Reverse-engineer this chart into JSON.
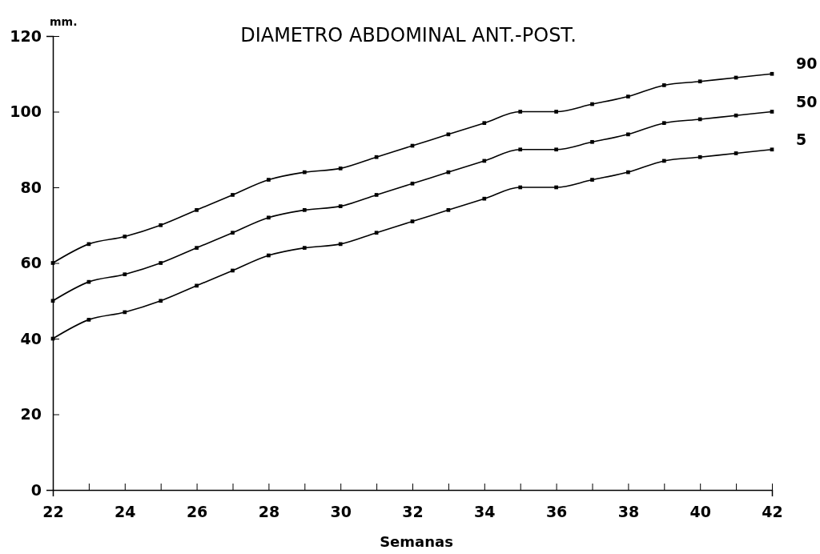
{
  "chart_data": {
    "type": "line",
    "title": "DIAMETRO ABDOMINAL ANT.-POST.",
    "xlabel": "Semanas",
    "ylabel": "mm.",
    "x": [
      22,
      23,
      24,
      25,
      26,
      27,
      28,
      29,
      30,
      31,
      32,
      33,
      34,
      35,
      36,
      37,
      38,
      39,
      40,
      41,
      42
    ],
    "series": [
      {
        "name": "90",
        "color": "#000000",
        "values": [
          60,
          65,
          67,
          70,
          74,
          78,
          82,
          84,
          85,
          88,
          91,
          94,
          97,
          100,
          100,
          102,
          104,
          107,
          108,
          109,
          110
        ]
      },
      {
        "name": "50",
        "color": "#000000",
        "values": [
          50,
          55,
          57,
          60,
          64,
          68,
          72,
          74,
          75,
          78,
          81,
          84,
          87,
          90,
          90,
          92,
          94,
          97,
          98,
          99,
          100
        ]
      },
      {
        "name": "5",
        "color": "#000000",
        "values": [
          40,
          45,
          47,
          50,
          54,
          58,
          62,
          64,
          65,
          68,
          71,
          74,
          77,
          80,
          80,
          82,
          84,
          87,
          88,
          89,
          90
        ]
      }
    ],
    "xlim": [
      22,
      42
    ],
    "ylim": [
      0,
      120
    ],
    "xticks": [
      22,
      {
        "value": 23,
        "label": null
      },
      24,
      {
        "value": 25,
        "label": null
      },
      26,
      {
        "value": 27,
        "label": null
      },
      28,
      {
        "value": 29,
        "label": null
      },
      30,
      {
        "value": 31,
        "label": null
      },
      32,
      {
        "value": 33,
        "label": null
      },
      34,
      {
        "value": 35,
        "label": null
      },
      36,
      {
        "value": 37,
        "label": null
      },
      38,
      {
        "value": 39,
        "label": null
      },
      40,
      {
        "value": 41,
        "label": null
      },
      42
    ],
    "yticks": [
      0,
      20,
      40,
      60,
      80,
      100,
      120
    ],
    "grid": false,
    "legend": false,
    "marker": "square",
    "line_style": "solid"
  }
}
